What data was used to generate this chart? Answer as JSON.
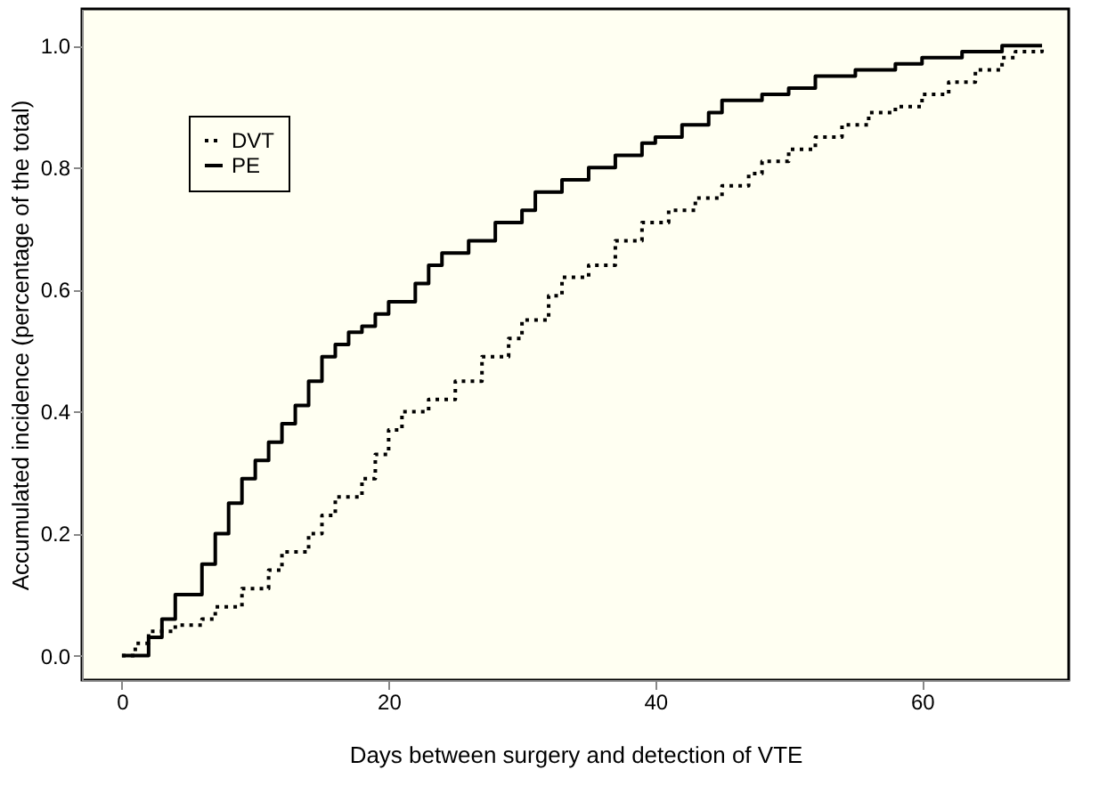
{
  "chart_data": {
    "type": "step",
    "xlabel": "Days between surgery and detection of VTE",
    "ylabel": "Accumulated incidence (percentage of the total)",
    "xlim": [
      -3,
      71
    ],
    "ylim": [
      -0.04,
      1.06
    ],
    "xticks": [
      0,
      20,
      40,
      60
    ],
    "yticks": [
      {
        "value": 0,
        "label": "0.0"
      },
      {
        "value": 0.2,
        "label": "0.2"
      },
      {
        "value": 0.4,
        "label": "0.4"
      },
      {
        "value": 0.6,
        "label": "0.6"
      },
      {
        "value": 0.8,
        "label": "0.8"
      },
      {
        "value": 1,
        "label": "1.0"
      }
    ],
    "grid": false,
    "legend": "top left",
    "marker": "none",
    "series": [
      {
        "name": "DVT",
        "color": "#000000",
        "line_style": "dotted",
        "x": [
          0,
          1,
          2,
          4,
          6,
          7,
          9,
          11,
          12,
          14,
          15,
          16,
          18,
          19,
          20,
          21,
          23,
          25,
          27,
          29,
          30,
          32,
          33,
          35,
          37,
          39,
          41,
          43,
          45,
          47,
          48,
          50,
          52,
          54,
          56,
          58,
          60,
          62,
          64,
          66,
          67,
          69
        ],
        "values": [
          0,
          0.02,
          0.04,
          0.05,
          0.06,
          0.08,
          0.11,
          0.14,
          0.17,
          0.2,
          0.23,
          0.26,
          0.29,
          0.33,
          0.37,
          0.4,
          0.42,
          0.45,
          0.49,
          0.52,
          0.55,
          0.59,
          0.62,
          0.64,
          0.68,
          0.71,
          0.73,
          0.75,
          0.77,
          0.79,
          0.81,
          0.83,
          0.85,
          0.87,
          0.89,
          0.9,
          0.92,
          0.94,
          0.96,
          0.98,
          0.99,
          1.0
        ]
      },
      {
        "name": "PE",
        "color": "#000000",
        "line_style": "solid",
        "x": [
          0,
          2,
          3,
          4,
          6,
          7,
          8,
          9,
          10,
          11,
          12,
          13,
          14,
          15,
          16,
          17,
          18,
          19,
          20,
          22,
          23,
          24,
          26,
          28,
          30,
          31,
          33,
          35,
          37,
          39,
          40,
          42,
          44,
          45,
          48,
          50,
          52,
          55,
          58,
          60,
          63,
          66,
          69
        ],
        "values": [
          0,
          0.03,
          0.06,
          0.1,
          0.15,
          0.2,
          0.25,
          0.29,
          0.32,
          0.35,
          0.38,
          0.41,
          0.45,
          0.49,
          0.51,
          0.53,
          0.54,
          0.56,
          0.58,
          0.61,
          0.64,
          0.66,
          0.68,
          0.71,
          0.73,
          0.76,
          0.78,
          0.8,
          0.82,
          0.84,
          0.85,
          0.87,
          0.89,
          0.91,
          0.92,
          0.93,
          0.95,
          0.96,
          0.97,
          0.98,
          0.99,
          1.0,
          1.0
        ]
      }
    ]
  }
}
